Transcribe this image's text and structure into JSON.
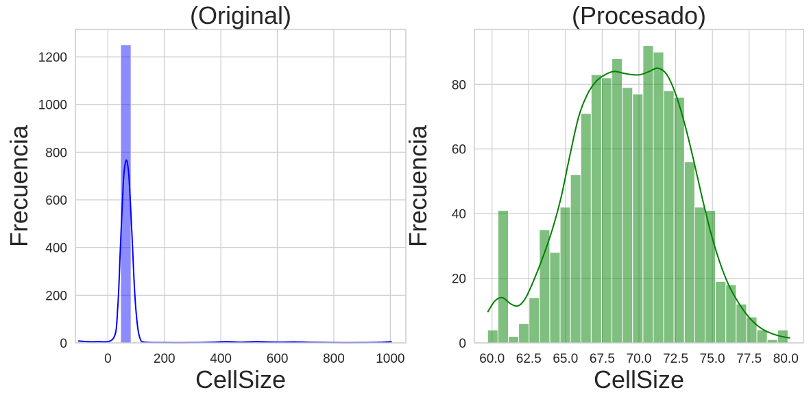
{
  "chart_data": [
    {
      "type": "histogram",
      "title": "(Original)",
      "xlabel": "CellSize",
      "ylabel": "Frecuencia",
      "xlim": [
        -115,
        1055
      ],
      "ylim": [
        0,
        1315
      ],
      "xticks": [
        0,
        200,
        400,
        600,
        800,
        1000
      ],
      "yticks": [
        0,
        200,
        400,
        600,
        800,
        1000,
        1200
      ],
      "grid": true,
      "color": "#0000ff",
      "bar_alpha": 0.45,
      "bins": [
        {
          "x0": 45,
          "x1": 82,
          "count": 1250
        }
      ],
      "kde": [
        [
          -105,
          8
        ],
        [
          -40,
          5
        ],
        [
          20,
          20
        ],
        [
          35,
          150
        ],
        [
          45,
          420
        ],
        [
          55,
          680
        ],
        [
          62,
          755
        ],
        [
          68,
          760
        ],
        [
          75,
          690
        ],
        [
          85,
          460
        ],
        [
          95,
          210
        ],
        [
          105,
          70
        ],
        [
          115,
          15
        ],
        [
          130,
          3
        ],
        [
          200,
          1
        ],
        [
          300,
          1
        ],
        [
          380,
          3
        ],
        [
          420,
          5
        ],
        [
          470,
          3
        ],
        [
          520,
          5
        ],
        [
          560,
          4
        ],
        [
          620,
          3
        ],
        [
          660,
          4
        ],
        [
          720,
          2
        ],
        [
          800,
          1
        ],
        [
          900,
          1
        ],
        [
          960,
          2
        ],
        [
          1005,
          5
        ]
      ]
    },
    {
      "type": "histogram",
      "title": "(Procesado)",
      "xlabel": "CellSize",
      "ylabel": "Frecuencia",
      "xlim": [
        58.8,
        81.2
      ],
      "ylim": [
        0,
        97
      ],
      "xticks": [
        "60.0",
        "62.5",
        "65.0",
        "67.5",
        "70.0",
        "72.5",
        "75.0",
        "77.5",
        "80.0"
      ],
      "yticks": [
        0,
        20,
        40,
        60,
        80
      ],
      "grid": true,
      "color": "#008000",
      "bar_alpha": 0.5,
      "bin_start": 59.7,
      "bin_width": 0.705,
      "counts": [
        4,
        41,
        2,
        6,
        14,
        35,
        28,
        42,
        52,
        71,
        83,
        82,
        88,
        79,
        77,
        92,
        90,
        78,
        76,
        56,
        42,
        41,
        19,
        18,
        12,
        8,
        4,
        1,
        4
      ],
      "kde": [
        [
          59.7,
          9.5
        ],
        [
          60.2,
          13
        ],
        [
          60.7,
          14
        ],
        [
          61.3,
          12
        ],
        [
          61.8,
          11.5
        ],
        [
          62.3,
          14
        ],
        [
          62.9,
          20
        ],
        [
          63.5,
          27
        ],
        [
          64.1,
          35
        ],
        [
          64.7,
          45
        ],
        [
          65.3,
          58
        ],
        [
          65.9,
          70
        ],
        [
          66.5,
          77
        ],
        [
          67.1,
          81
        ],
        [
          67.7,
          83
        ],
        [
          68.3,
          84
        ],
        [
          68.9,
          83.5
        ],
        [
          69.5,
          83
        ],
        [
          70.1,
          83
        ],
        [
          70.7,
          84
        ],
        [
          71.3,
          85
        ],
        [
          71.9,
          83
        ],
        [
          72.5,
          77
        ],
        [
          73.1,
          68
        ],
        [
          73.7,
          57
        ],
        [
          74.3,
          45
        ],
        [
          74.9,
          34
        ],
        [
          75.5,
          25
        ],
        [
          76.1,
          18
        ],
        [
          76.7,
          13
        ],
        [
          77.3,
          9
        ],
        [
          77.9,
          6
        ],
        [
          78.5,
          4
        ],
        [
          79.1,
          2.8
        ],
        [
          79.7,
          2
        ],
        [
          80.3,
          1.5
        ]
      ]
    }
  ]
}
